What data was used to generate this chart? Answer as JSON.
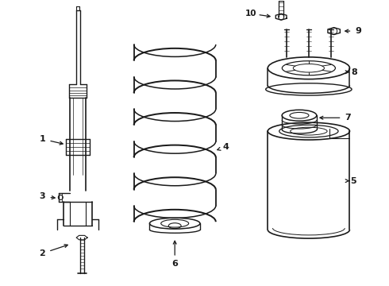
{
  "background_color": "#ffffff",
  "line_color": "#1a1a1a",
  "figure_width": 4.9,
  "figure_height": 3.6,
  "dpi": 100
}
